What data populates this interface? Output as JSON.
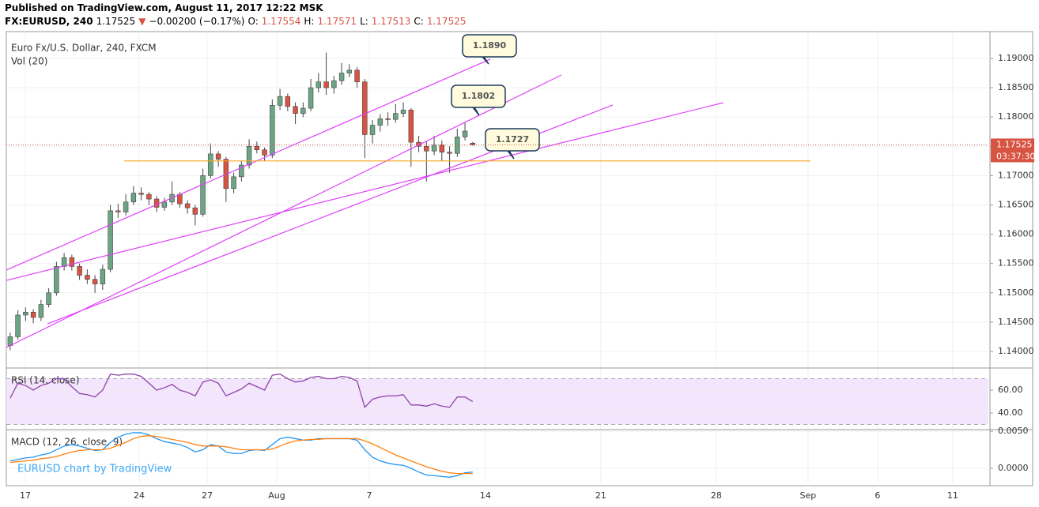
{
  "header": {
    "published": "Published on TradingView.com, August 11, 2017 12:22 MSK",
    "quote": [
      {
        "text": "FX:EURUSD, 240",
        "color": "#000000"
      },
      {
        "text": "1.17525",
        "color": "#000000"
      },
      {
        "text": "▼",
        "color": "#d75442"
      },
      {
        "text": "−0.00200 (−0.17%)",
        "color": "#000000"
      },
      {
        "text": "O:",
        "color": "#000000"
      },
      {
        "text": "1.17554",
        "color": "#d75442"
      },
      {
        "text": "H:",
        "color": "#000000"
      },
      {
        "text": "1.17571",
        "color": "#d75442"
      },
      {
        "text": "L:",
        "color": "#000000"
      },
      {
        "text": "1.17513",
        "color": "#d75442"
      },
      {
        "text": "C:",
        "color": "#000000"
      },
      {
        "text": "1.17525",
        "color": "#d75442"
      }
    ]
  },
  "chart_data": [
    {
      "type": "candlestick",
      "title": "Euro Fx/U.S. Dollar, 240, FXCM",
      "subtitle": "Vol (20)",
      "up_color": "#6ba583",
      "down_color": "#d75442",
      "grid": true,
      "xlim": [
        -0.5,
        126.9
      ],
      "xticks": [
        {
          "value": 1.96,
          "label": "17"
        },
        {
          "value": 16.73,
          "label": "24"
        },
        {
          "value": 25.55,
          "label": "27"
        },
        {
          "value": 34.58,
          "label": "Aug"
        },
        {
          "value": 46.58,
          "label": "7"
        },
        {
          "value": 61.65,
          "label": "14"
        },
        {
          "value": 76.63,
          "label": "21"
        },
        {
          "value": 91.6,
          "label": "28"
        },
        {
          "value": 103.5,
          "label": "Sep"
        },
        {
          "value": 112.53,
          "label": "6"
        },
        {
          "value": 122.27,
          "label": "11"
        }
      ],
      "ylim": [
        1.1373,
        1.19458
      ],
      "yticks": [
        {
          "value": 1.19,
          "label": "1.19000"
        },
        {
          "value": 1.185,
          "label": "1.18500"
        },
        {
          "value": 1.18,
          "label": "1.18000"
        },
        {
          "value": 1.175,
          "label": "1.17500"
        },
        {
          "value": 1.17,
          "label": "1.17000"
        },
        {
          "value": 1.165,
          "label": "1.16500"
        },
        {
          "value": 1.16,
          "label": "1.16000"
        },
        {
          "value": 1.155,
          "label": "1.15500"
        },
        {
          "value": 1.15,
          "label": "1.15000"
        },
        {
          "value": 1.145,
          "label": "1.14500"
        },
        {
          "value": 1.14,
          "label": "1.14000"
        }
      ],
      "ohlc": [
        [
          1.141,
          1.1432,
          1.1402,
          1.1425
        ],
        [
          1.1425,
          1.147,
          1.142,
          1.1462
        ],
        [
          1.1462,
          1.1475,
          1.1452,
          1.1467
        ],
        [
          1.1467,
          1.1472,
          1.1448,
          1.1458
        ],
        [
          1.1458,
          1.1488,
          1.1452,
          1.148
        ],
        [
          1.148,
          1.1508,
          1.1475,
          1.15
        ],
        [
          1.15,
          1.1553,
          1.1495,
          1.1545
        ],
        [
          1.1545,
          1.1568,
          1.1538,
          1.156
        ],
        [
          1.156,
          1.1565,
          1.1538,
          1.1545
        ],
        [
          1.1545,
          1.155,
          1.1522,
          1.153
        ],
        [
          1.153,
          1.154,
          1.1515,
          1.1523
        ],
        [
          1.1523,
          1.153,
          1.15,
          1.1515
        ],
        [
          1.1515,
          1.1548,
          1.1505,
          1.154
        ],
        [
          1.154,
          1.165,
          1.1535,
          1.164
        ],
        [
          1.164,
          1.1652,
          1.1628,
          1.1638
        ],
        [
          1.1638,
          1.1668,
          1.1632,
          1.1655
        ],
        [
          1.1655,
          1.1682,
          1.165,
          1.167
        ],
        [
          1.167,
          1.168,
          1.1658,
          1.1668
        ],
        [
          1.1668,
          1.1672,
          1.165,
          1.166
        ],
        [
          1.166,
          1.1665,
          1.1638,
          1.1646
        ],
        [
          1.1646,
          1.1662,
          1.164,
          1.1655
        ],
        [
          1.1655,
          1.169,
          1.165,
          1.1668
        ],
        [
          1.1668,
          1.1672,
          1.1645,
          1.1652
        ],
        [
          1.1652,
          1.1658,
          1.1635,
          1.1645
        ],
        [
          1.1645,
          1.165,
          1.1615,
          1.1634
        ],
        [
          1.1634,
          1.1712,
          1.163,
          1.17
        ],
        [
          1.17,
          1.1755,
          1.1695,
          1.1737
        ],
        [
          1.1737,
          1.1742,
          1.1715,
          1.1728
        ],
        [
          1.1728,
          1.1732,
          1.1655,
          1.1678
        ],
        [
          1.1678,
          1.1705,
          1.167,
          1.1698
        ],
        [
          1.1698,
          1.1725,
          1.169,
          1.1718
        ],
        [
          1.1718,
          1.1762,
          1.1712,
          1.175
        ],
        [
          1.175,
          1.1758,
          1.1738,
          1.1744
        ],
        [
          1.1744,
          1.1748,
          1.1725,
          1.1735
        ],
        [
          1.1735,
          1.183,
          1.173,
          1.182
        ],
        [
          1.182,
          1.1848,
          1.1812,
          1.1835
        ],
        [
          1.1835,
          1.184,
          1.181,
          1.1818
        ],
        [
          1.1818,
          1.1825,
          1.1788,
          1.1806
        ],
        [
          1.1806,
          1.1825,
          1.18,
          1.1815
        ],
        [
          1.1815,
          1.1865,
          1.181,
          1.185
        ],
        [
          1.185,
          1.1875,
          1.1842,
          1.186
        ],
        [
          1.186,
          1.191,
          1.1838,
          1.185
        ],
        [
          1.185,
          1.187,
          1.184,
          1.1862
        ],
        [
          1.1862,
          1.1892,
          1.1855,
          1.1875
        ],
        [
          1.1875,
          1.189,
          1.1868,
          1.188
        ],
        [
          1.188,
          1.1885,
          1.185,
          1.186
        ],
        [
          1.186,
          1.1865,
          1.173,
          1.177
        ],
        [
          1.177,
          1.1795,
          1.1755,
          1.1786
        ],
        [
          1.1786,
          1.1805,
          1.1775,
          1.1797
        ],
        [
          1.1797,
          1.1808,
          1.1785,
          1.1796
        ],
        [
          1.1796,
          1.1822,
          1.179,
          1.1806
        ],
        [
          1.1806,
          1.1825,
          1.18,
          1.1812
        ],
        [
          1.1812,
          1.1815,
          1.1715,
          1.1757
        ],
        [
          1.1757,
          1.1768,
          1.174,
          1.175
        ],
        [
          1.175,
          1.1758,
          1.169,
          1.1742
        ],
        [
          1.1742,
          1.1768,
          1.1735,
          1.1752
        ],
        [
          1.1752,
          1.176,
          1.1725,
          1.174
        ],
        [
          1.174,
          1.175,
          1.1705,
          1.1738
        ],
        [
          1.1738,
          1.178,
          1.1732,
          1.1766
        ],
        [
          1.1766,
          1.179,
          1.176,
          1.1776
        ],
        [
          1.17554,
          1.17571,
          1.17513,
          1.17525
        ]
      ],
      "drawings": [
        {
          "x": [
            -0.5,
            62.27
          ],
          "y": [
            1.15388,
            1.18987
          ],
          "color": "#e040fb"
        },
        {
          "x": [
            -0.5,
            71.5
          ],
          "y": [
            1.14067,
            1.18717
          ],
          "color": "#e040fb"
        },
        {
          "x": [
            -0.5,
            92.53
          ],
          "y": [
            1.15212,
            1.18245
          ],
          "color": "#e040fb"
        },
        {
          "x": [
            4.83,
            78.17
          ],
          "y": [
            1.14471,
            1.18205
          ],
          "color": "#e040fb"
        },
        {
          "x": [
            14.78,
            103.8
          ],
          "y": [
            1.1725,
            1.1725
          ],
          "color": "#f5a623"
        }
      ],
      "callouts": [
        "1.1890",
        "1.1802",
        "1.1727"
      ],
      "last_price": {
        "value": 1.17525,
        "label": "1.17525"
      },
      "countdown": "03:37:30",
      "last_color": "#d75442"
    },
    {
      "type": "line",
      "title": "RSI (14, close)",
      "xlim": [
        -0.5,
        126.9
      ],
      "ylim": [
        26.2,
        78.6
      ],
      "yticks": [
        {
          "value": 60,
          "label": "60.00"
        },
        {
          "value": 40,
          "label": "40.00"
        }
      ],
      "bands": [
        30,
        70
      ],
      "band_color": "#f3e5fb",
      "series": [
        {
          "color": "#8e44ad",
          "values": [
            53,
            66,
            64,
            60,
            64,
            66,
            70,
            70,
            63,
            57,
            56,
            54,
            60,
            74,
            73,
            74,
            74,
            72,
            66,
            60,
            62,
            65,
            60,
            58,
            55,
            67,
            69,
            66,
            55,
            58,
            61,
            66,
            63,
            60,
            73,
            74,
            70,
            67,
            68,
            71,
            72,
            70,
            70,
            72,
            71,
            68,
            45,
            52,
            54,
            55,
            55,
            56,
            47,
            47,
            46,
            48,
            46,
            45,
            54,
            54,
            50
          ]
        }
      ]
    },
    {
      "type": "line",
      "title": "MACD (12, 26, close, 9)",
      "xlim": [
        -0.5,
        126.9
      ],
      "ylim": [
        -0.00234,
        0.00511
      ],
      "yticks": [
        {
          "value": 0.005,
          "label": "0.0050"
        },
        {
          "value": 0,
          "label": "0.0000"
        }
      ],
      "watermark": "EURUSD chart by TradingView",
      "series": [
        {
          "color": "#2196f3",
          "values": [
            0.001,
            0.0012,
            0.0014,
            0.0015,
            0.0018,
            0.002,
            0.0025,
            0.003,
            0.0032,
            0.003,
            0.0027,
            0.0024,
            0.0025,
            0.0035,
            0.0042,
            0.0046,
            0.0048,
            0.0048,
            0.0045,
            0.004,
            0.0036,
            0.0034,
            0.0032,
            0.0028,
            0.0022,
            0.0025,
            0.0032,
            0.003,
            0.0022,
            0.002,
            0.002,
            0.0024,
            0.0025,
            0.0024,
            0.0032,
            0.004,
            0.0042,
            0.004,
            0.0038,
            0.0038,
            0.004,
            0.004,
            0.004,
            0.004,
            0.004,
            0.0038,
            0.0025,
            0.0015,
            0.001,
            0.0007,
            0.0005,
            0.0004,
            0,
            -0.0005,
            -0.0009,
            -0.001,
            -0.0011,
            -0.0012,
            -0.001,
            -0.0006,
            -0.0005
          ]
        },
        {
          "color": "#ff7f0e",
          "values": [
            0.0008,
            0.0009,
            0.001,
            0.0011,
            0.0013,
            0.0014,
            0.0016,
            0.0019,
            0.0022,
            0.0024,
            0.0025,
            0.0025,
            0.0025,
            0.0027,
            0.0031,
            0.0035,
            0.004,
            0.0043,
            0.0044,
            0.0043,
            0.0041,
            0.0039,
            0.0037,
            0.0035,
            0.0032,
            0.003,
            0.003,
            0.003,
            0.0029,
            0.0027,
            0.0025,
            0.0025,
            0.0025,
            0.0025,
            0.0026,
            0.003,
            0.0034,
            0.0037,
            0.0038,
            0.0039,
            0.0039,
            0.004,
            0.004,
            0.004,
            0.004,
            0.004,
            0.0037,
            0.0033,
            0.0028,
            0.0023,
            0.0018,
            0.0014,
            0.001,
            0.0006,
            0.0002,
            -0.0001,
            -0.0004,
            -0.0006,
            -0.0007,
            -0.0007,
            -0.0007
          ]
        }
      ]
    }
  ]
}
